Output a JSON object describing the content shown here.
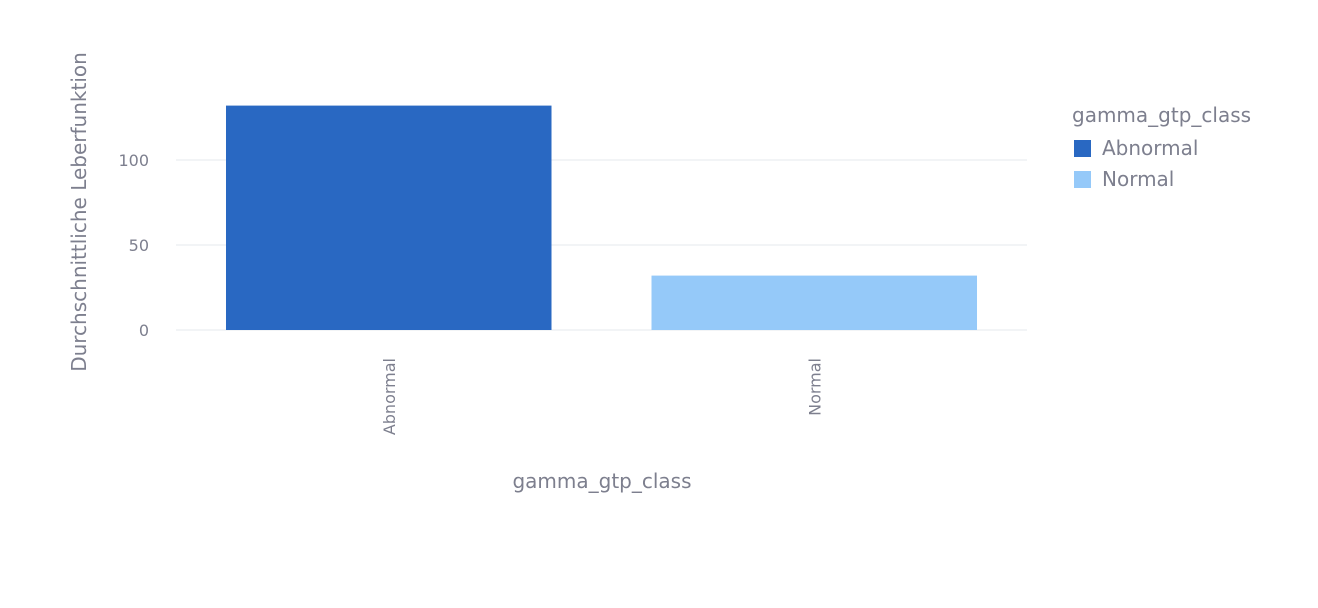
{
  "chart_data": {
    "type": "bar",
    "title": "",
    "xlabel": "gamma_gtp_class",
    "ylabel": "Durchschnittliche Leberfunktion",
    "categories": [
      "Abnormal",
      "Normal"
    ],
    "values": [
      132,
      32
    ],
    "ylim": [
      0,
      140
    ],
    "yticks": [
      0,
      50,
      100
    ],
    "ytick_labels": [
      "0",
      "50",
      "100"
    ],
    "grid": true,
    "legend": {
      "title": "gamma_gtp_class",
      "position": "top-right",
      "entries": [
        {
          "label": "Abnormal",
          "color": "#2968c2"
        },
        {
          "label": "Normal",
          "color": "#95c9f9"
        }
      ]
    },
    "colors": [
      "#2968c2",
      "#95c9f9"
    ]
  }
}
